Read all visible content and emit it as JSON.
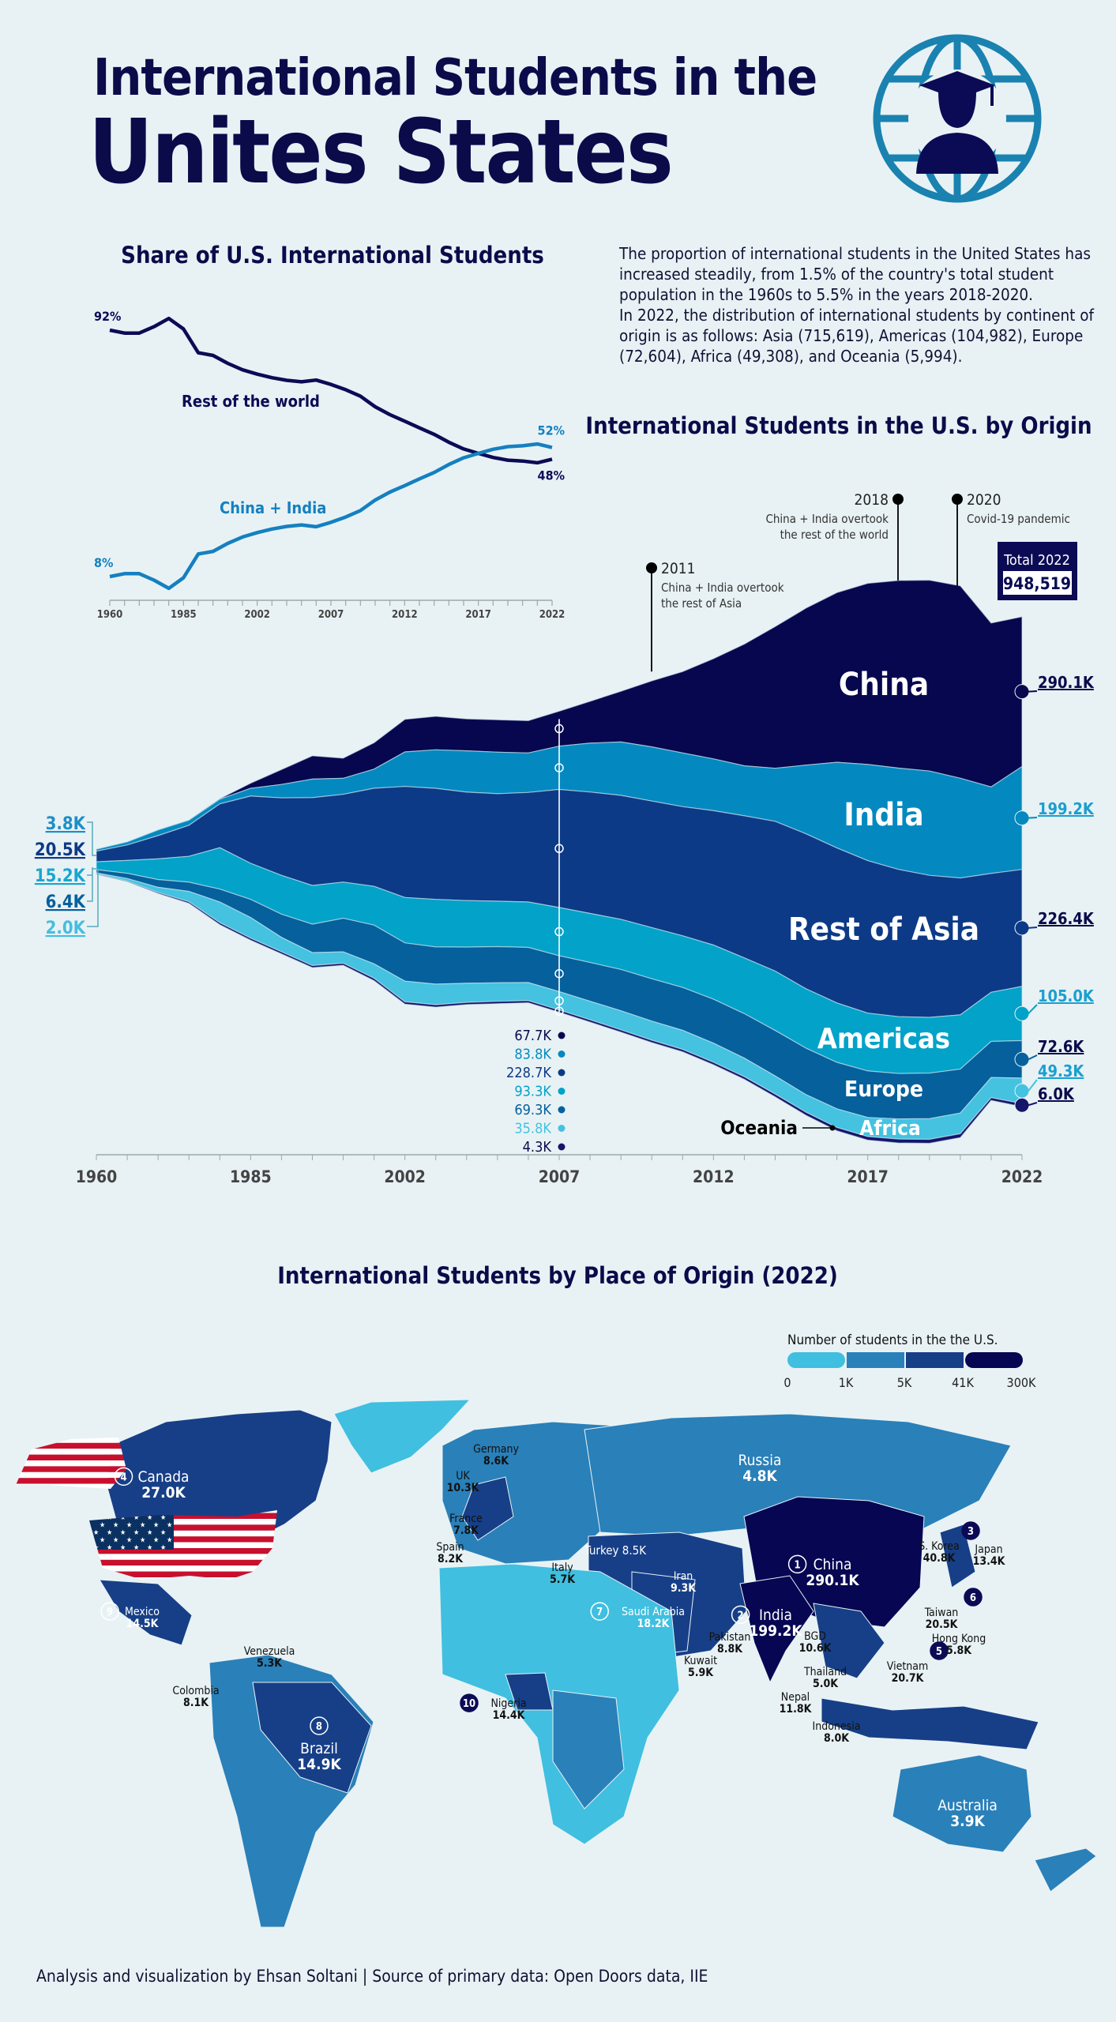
{
  "header": {
    "title_line1": "International Students in the",
    "title_line2": "Unites States",
    "icon": "globe-graduate-icon"
  },
  "intro": {
    "paragraph1": "The proportion of international students in the United States has increased steadily, from 1.5% of the country's total student population in the 1960s to 5.5% in the years 2018-2020.",
    "paragraph2": "In 2022, the distribution of international students by continent of  origin is as follows: Asia (715,619), Americas (104,982), Europe (72,604), Africa (49,308), and Oceania (5,994)."
  },
  "colors": {
    "background": "#e8f2f5",
    "navy": "#0b0b4a",
    "china": "#07074f",
    "india": "#0389c0",
    "rest_of_asia": "#0d3a86",
    "americas": "#03a2c9",
    "europe": "#05609c",
    "africa": "#44c2e0",
    "oceania": "#15156a",
    "line_rest": "#0b0b55",
    "line_china_india": "#1580c0"
  },
  "chart_data": [
    {
      "type": "line",
      "title": "Share of U.S. International Students",
      "x": [
        "1960",
        "",
        "",
        "",
        "",
        "1985",
        "",
        "",
        "",
        "",
        "2002",
        "",
        "",
        "",
        "",
        "2007",
        "",
        "",
        "",
        "",
        "2012",
        "",
        "",
        "",
        "",
        "2017",
        "",
        "",
        "",
        "",
        "2022"
      ],
      "tick_labels": [
        "1960",
        "1985",
        "2002",
        "2007",
        "2012",
        "2017",
        "2022"
      ],
      "ylim": [
        0,
        100
      ],
      "series": [
        {
          "name": "Rest of the world",
          "values": [
            92,
            91,
            91,
            93.2,
            96,
            92.4,
            84.3,
            83.4,
            80.7,
            78.5,
            77,
            75.8,
            74.9,
            74.4,
            75,
            73.5,
            71.7,
            69.5,
            65.9,
            63.2,
            61,
            58.7,
            56.5,
            53.8,
            51.5,
            50,
            48.6,
            47.7,
            47.4,
            46.8,
            48
          ],
          "start_label": "92%",
          "end_label": "48%"
        },
        {
          "name": "China + India",
          "values": [
            8,
            9,
            9,
            6.8,
            4,
            7.6,
            15.7,
            16.6,
            19.3,
            21.5,
            23,
            24.2,
            25.1,
            25.6,
            25,
            26.5,
            28.3,
            30.5,
            34.1,
            36.8,
            39,
            41.3,
            43.5,
            46.2,
            48.5,
            50,
            51.4,
            52.3,
            52.6,
            53.2,
            52
          ],
          "start_label": "8%",
          "end_label": "52%"
        }
      ]
    },
    {
      "type": "area",
      "title": "International Students in the U.S. by Origin",
      "stacking": "streamgraph",
      "x": [
        "1960",
        "",
        "",
        "",
        "",
        "1985",
        "",
        "",
        "",
        "",
        "2002",
        "",
        "",
        "",
        "",
        "2007",
        "",
        "",
        "",
        "",
        "2012",
        "",
        "",
        "",
        "",
        "2017",
        "",
        "",
        "",
        "",
        "2022"
      ],
      "tick_labels": [
        "1960",
        "1985",
        "2002",
        "2007",
        "2012",
        "2017",
        "2022"
      ],
      "series": [
        {
          "name": "China",
          "values": [
            0.1,
            0.1,
            0.1,
            0.1,
            1,
            10,
            29,
            45,
            39,
            51,
            63.2,
            64.8,
            61.8,
            62.6,
            62.6,
            67.7,
            81.1,
            98.2,
            127.8,
            157.6,
            194,
            235.6,
            274.4,
            304,
            328.5,
            350.8,
            363.3,
            369.5,
            372.5,
            317.3,
            290.1
          ]
        },
        {
          "name": "India",
          "values": [
            3.8,
            6,
            11,
            10,
            9,
            15,
            26,
            36,
            31,
            37,
            66.8,
            74.6,
            80,
            80.5,
            76.5,
            83.8,
            94.6,
            103.3,
            104.9,
            103.9,
            100.3,
            96.8,
            102.7,
            132.9,
            165.9,
            186.3,
            196.3,
            202,
            193.1,
            167.6,
            199.2
          ]
        },
        {
          "name": "Rest of Asia",
          "values": [
            20.5,
            30,
            45,
            60,
            85,
            130,
            150,
            170,
            170,
            190,
            215,
            215,
            210,
            208,
            212,
            228.7,
            235,
            240,
            245,
            250,
            260,
            275,
            290,
            300,
            300,
            295,
            285,
            275,
            265,
            230,
            226.4
          ]
        },
        {
          "name": "Americas",
          "values": [
            15.2,
            25,
            40,
            50,
            80,
            70,
            75,
            75,
            70,
            75,
            88,
            92,
            90,
            88,
            88,
            93.3,
            95,
            97,
            99,
            100,
            105,
            108,
            115,
            115,
            115,
            112,
            110,
            108,
            105,
            95,
            105
          ]
        },
        {
          "name": "Europe",
          "values": [
            6.4,
            10,
            15,
            18,
            25,
            35,
            45,
            55,
            65,
            75,
            74,
            72,
            70,
            70,
            68,
            69.3,
            75,
            80,
            82,
            83,
            85,
            86,
            88,
            90,
            90,
            90,
            88,
            88,
            85,
            70,
            72.6
          ]
        },
        {
          "name": "Africa",
          "values": [
            2,
            5,
            10,
            20,
            40,
            40,
            28,
            25,
            22,
            28,
            40,
            40,
            37,
            36,
            35,
            35.8,
            36,
            37,
            37,
            37,
            37,
            36,
            35,
            34,
            36,
            37,
            39,
            40,
            40,
            39,
            49.3
          ]
        },
        {
          "name": "Oceania",
          "values": [
            0.5,
            1,
            2,
            3,
            4,
            4,
            4,
            4,
            4,
            4.5,
            4.5,
            4.5,
            4.3,
            4.3,
            4.2,
            4.3,
            4.4,
            4.5,
            4.6,
            4.7,
            4.8,
            5,
            5.5,
            6,
            6.5,
            7,
            7.5,
            7.7,
            7.5,
            5.3,
            6.0
          ]
        }
      ],
      "start_labels": [
        "3.8K",
        "20.5K",
        "15.2K",
        "6.4K",
        "2.0K"
      ],
      "labels_2007": [
        "67.7K",
        "83.8K",
        "228.7K",
        "93.3K",
        "69.3K",
        "35.8K",
        "4.3K"
      ],
      "end_labels": [
        "290.1K",
        "199.2K",
        "226.4K",
        "105.0K",
        "72.6K",
        "49.3K",
        "6.0K"
      ],
      "annotations": [
        {
          "year": "2011",
          "text1": "China + India overtook",
          "text2": "the rest of Asia"
        },
        {
          "year": "2018",
          "text1": "China + India overtook",
          "text2": "the rest of the world"
        },
        {
          "year": "2020",
          "text1": "Covid-19 pandemic",
          "text2": ""
        }
      ],
      "total_label": "Total 2022",
      "total_value": "948,519"
    },
    {
      "type": "choropleth",
      "title": "International Students by Place of Origin (2022)",
      "legend_title": "Number of students in the the U.S.",
      "legend_ticks": [
        "0",
        "1K",
        "5K",
        "41K",
        "300K"
      ],
      "legend_colors": [
        "#40bfe0",
        "#2a80b9",
        "#173f87",
        "#060652"
      ],
      "countries": [
        {
          "name": "China",
          "value": "290.1K",
          "rank": "1"
        },
        {
          "name": "India",
          "value": "199.2K",
          "rank": "2"
        },
        {
          "name": "S. Korea",
          "value": "40.8K",
          "rank": "3"
        },
        {
          "name": "Canada",
          "value": "27.0K",
          "rank": "4"
        },
        {
          "name": "Vietnam",
          "value": "20.7K",
          "rank": "5"
        },
        {
          "name": "Taiwan",
          "value": "20.5K",
          "rank": "6"
        },
        {
          "name": "Saudi Arabia",
          "value": "18.2K",
          "rank": "7"
        },
        {
          "name": "Brazil",
          "value": "14.9K",
          "rank": "8"
        },
        {
          "name": "Mexico",
          "value": "14.5K",
          "rank": "9"
        },
        {
          "name": "Nigeria",
          "value": "14.4K",
          "rank": "10"
        },
        {
          "name": "Japan",
          "value": "13.4K",
          "rank": ""
        },
        {
          "name": "Nepal",
          "value": "11.8K",
          "rank": ""
        },
        {
          "name": "BGD",
          "value": "10.6K",
          "rank": ""
        },
        {
          "name": "UK",
          "value": "10.3K",
          "rank": ""
        },
        {
          "name": "Iran",
          "value": "9.3K",
          "rank": ""
        },
        {
          "name": "Pakistan",
          "value": "8.8K",
          "rank": ""
        },
        {
          "name": "Germany",
          "value": "8.6K",
          "rank": ""
        },
        {
          "name": "Turkey",
          "value": "8.5K",
          "rank": ""
        },
        {
          "name": "Spain",
          "value": "8.2K",
          "rank": ""
        },
        {
          "name": "Colombia",
          "value": "8.1K",
          "rank": ""
        },
        {
          "name": "Indonesia",
          "value": "8.0K",
          "rank": ""
        },
        {
          "name": "France",
          "value": "7.8K",
          "rank": ""
        },
        {
          "name": "Kuwait",
          "value": "5.9K",
          "rank": ""
        },
        {
          "name": "Hong Kong",
          "value": "5.8K",
          "rank": ""
        },
        {
          "name": "Italy",
          "value": "5.7K",
          "rank": ""
        },
        {
          "name": "Venezuela",
          "value": "5.3K",
          "rank": ""
        },
        {
          "name": "Thailand",
          "value": "5.0K",
          "rank": ""
        },
        {
          "name": "Russia",
          "value": "4.8K",
          "rank": ""
        },
        {
          "name": "Australia",
          "value": "3.9K",
          "rank": ""
        }
      ]
    }
  ],
  "footer": {
    "credit": "Analysis  and visualization by Ehsan Soltani | Source of primary data: Open Doors data, IIE"
  }
}
